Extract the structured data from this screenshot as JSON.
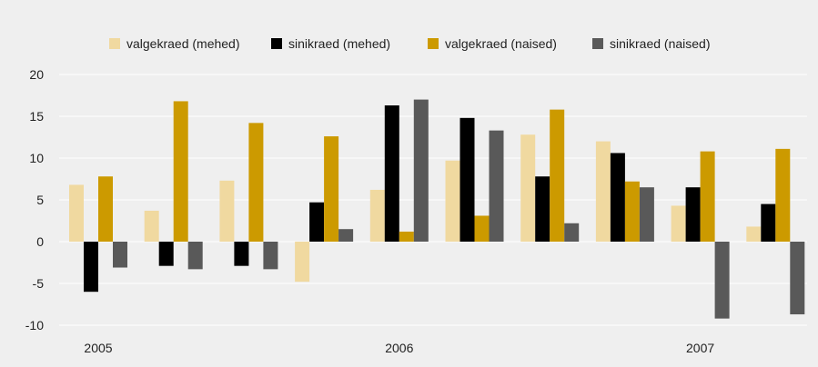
{
  "colors": {
    "background": "#efefef",
    "gridline": "#ffffff"
  },
  "chart_data": {
    "type": "bar",
    "title": "",
    "xlabel": "",
    "ylabel": "",
    "ylim": [
      -10,
      20
    ],
    "yticks": [
      20,
      15,
      10,
      5,
      0,
      -5,
      -10
    ],
    "grid": true,
    "legend_position": "top",
    "year_labels": [
      {
        "label": "2005",
        "group": 0
      },
      {
        "label": "2006",
        "group": 4
      },
      {
        "label": "2007",
        "group": 8
      }
    ],
    "group_count": 10,
    "series": [
      {
        "name": "valgekraed (mehed)",
        "color": "#f0d9a0",
        "values": [
          6.8,
          3.7,
          7.3,
          -4.8,
          6.2,
          9.7,
          12.8,
          12.0,
          4.3,
          1.8
        ]
      },
      {
        "name": "sinikraed (mehed)",
        "color": "#000000",
        "values": [
          -6.0,
          -2.9,
          -2.9,
          4.7,
          16.3,
          14.8,
          7.8,
          10.6,
          6.5,
          4.5
        ]
      },
      {
        "name": "valgekraed (naised)",
        "color": "#cc9a00",
        "values": [
          7.8,
          16.8,
          14.2,
          12.6,
          1.2,
          3.1,
          15.8,
          7.2,
          10.8,
          11.1
        ]
      },
      {
        "name": "sinikraed (naised)",
        "color": "#595959",
        "values": [
          -3.1,
          -3.3,
          -3.3,
          1.5,
          17.0,
          13.3,
          2.2,
          6.5,
          -9.2,
          -8.7
        ]
      }
    ]
  }
}
